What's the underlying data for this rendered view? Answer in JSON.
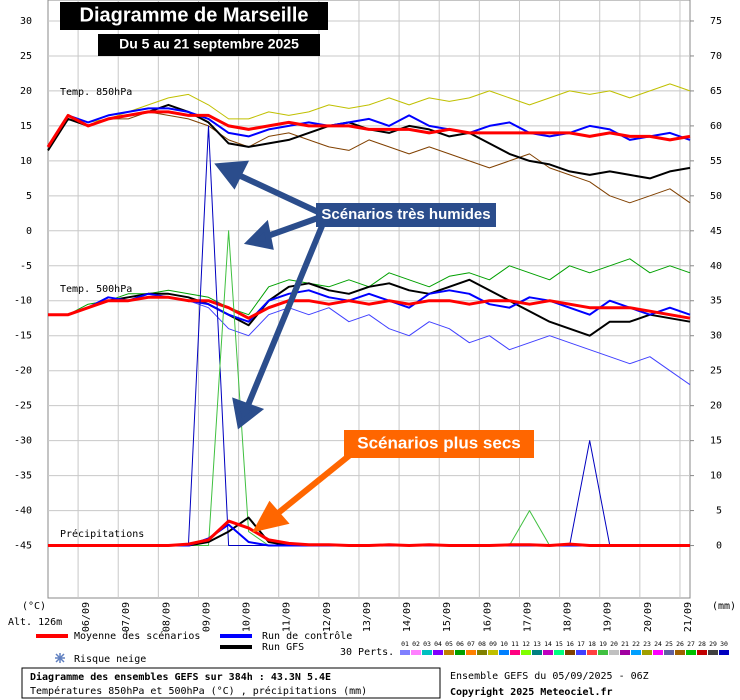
{
  "chart_data": {
    "type": "line",
    "title": "Diagramme de Marseille",
    "subtitle": "Du 5 au 21 septembre 2025",
    "y_unit": "(°C)",
    "y2_unit": "(mm)",
    "altitude": "Alt. 126m",
    "xlim": [
      0,
      384
    ],
    "xticks": [
      {
        "value": 18,
        "label": "06/09"
      },
      {
        "value": 42,
        "label": "07/09"
      },
      {
        "value": 66,
        "label": "08/09"
      },
      {
        "value": 90,
        "label": "09/09"
      },
      {
        "value": 114,
        "label": "10/09"
      },
      {
        "value": 138,
        "label": "11/09"
      },
      {
        "value": 162,
        "label": "12/09"
      },
      {
        "value": 186,
        "label": "13/09"
      },
      {
        "value": 210,
        "label": "14/09"
      },
      {
        "value": 234,
        "label": "15/09"
      },
      {
        "value": 258,
        "label": "16/09"
      },
      {
        "value": 282,
        "label": "17/09"
      },
      {
        "value": 306,
        "label": "18/09"
      },
      {
        "value": 330,
        "label": "19/09"
      },
      {
        "value": 354,
        "label": "20/09"
      },
      {
        "value": 378,
        "label": "21/09"
      }
    ],
    "ylim": [
      -52.5,
      33
    ],
    "yticks": [
      -45,
      -40,
      -35,
      -30,
      -25,
      -20,
      -15,
      -10,
      -5,
      0,
      5,
      10,
      15,
      20,
      25,
      30
    ],
    "y2lim": [
      -7.5,
      78
    ],
    "y2ticks": [
      0,
      5,
      10,
      15,
      20,
      25,
      30,
      35,
      40,
      45,
      50,
      55,
      60,
      65,
      70,
      75
    ],
    "grid": true,
    "x": [
      0,
      12,
      24,
      36,
      48,
      60,
      72,
      84,
      96,
      108,
      120,
      132,
      144,
      156,
      168,
      180,
      192,
      204,
      216,
      228,
      240,
      252,
      264,
      276,
      288,
      300,
      312,
      324,
      336,
      348,
      360,
      372,
      384
    ],
    "legend": [
      {
        "name": "Moyenne des scénarios",
        "color": "#ff0000"
      },
      {
        "name": "Run de contrôle",
        "color": "#0000ff"
      },
      {
        "name": "Run GFS",
        "color": "#000000"
      }
    ],
    "snow_label": "Risque neige",
    "perts_label": "30 Perts.",
    "perts": [
      {
        "label": "01",
        "color": "#8080ff"
      },
      {
        "label": "02",
        "color": "#ff80ff"
      },
      {
        "label": "03",
        "color": "#00c0c0"
      },
      {
        "label": "04",
        "color": "#8000ff"
      },
      {
        "label": "05",
        "color": "#c08000"
      },
      {
        "label": "06",
        "color": "#00a000"
      },
      {
        "label": "07",
        "color": "#ff8000"
      },
      {
        "label": "08",
        "color": "#808000"
      },
      {
        "label": "09",
        "color": "#c0c000"
      },
      {
        "label": "10",
        "color": "#0080ff"
      },
      {
        "label": "11",
        "color": "#ff0080"
      },
      {
        "label": "12",
        "color": "#80ff00"
      },
      {
        "label": "13",
        "color": "#008080"
      },
      {
        "label": "14",
        "color": "#c000c0"
      },
      {
        "label": "15",
        "color": "#00ff80"
      },
      {
        "label": "16",
        "color": "#804000"
      },
      {
        "label": "17",
        "color": "#4040ff"
      },
      {
        "label": "18",
        "color": "#ff4040"
      },
      {
        "label": "19",
        "color": "#40c040"
      },
      {
        "label": "20",
        "color": "#c0c0c0"
      },
      {
        "label": "21",
        "color": "#a000a0"
      },
      {
        "label": "22",
        "color": "#00a0ff"
      },
      {
        "label": "23",
        "color": "#a0a000"
      },
      {
        "label": "24",
        "color": "#ff00ff"
      },
      {
        "label": "25",
        "color": "#6060a0"
      },
      {
        "label": "26",
        "color": "#a06000"
      },
      {
        "label": "27",
        "color": "#00c000"
      },
      {
        "label": "28",
        "color": "#c00000"
      },
      {
        "label": "29",
        "color": "#404040"
      },
      {
        "label": "30",
        "color": "#0000c0"
      }
    ],
    "panels": [
      {
        "label": "Temp. 850hPa",
        "series": [
          {
            "values": [
              12,
              16.5,
              15,
              16,
              16.5,
              17,
              17,
              16.5,
              16.5,
              15,
              14.5,
              15,
              15.5,
              15,
              15,
              15,
              14.5,
              14.5,
              14.5,
              14,
              14.5,
              14,
              14,
              14,
              14,
              14,
              14,
              13.5,
              14,
              13.5,
              13.5,
              13,
              13.5
            ]
          },
          {
            "values": [
              12,
              16.5,
              15.5,
              16.5,
              17,
              17.5,
              17.5,
              17,
              16,
              14,
              13.5,
              14.5,
              15,
              15.5,
              15,
              15.5,
              16,
              15,
              16.5,
              15,
              14.5,
              14,
              15,
              15.5,
              14,
              13.5,
              14,
              15,
              14.5,
              13,
              13.5,
              14,
              13
            ]
          },
          {
            "values": [
              11.5,
              16,
              15,
              16,
              16.5,
              17,
              18,
              17,
              15.5,
              12.5,
              12,
              12.5,
              13,
              14,
              15,
              15.5,
              14.5,
              14,
              15,
              14.5,
              13.5,
              14,
              12.5,
              11,
              10,
              9.5,
              8.5,
              8,
              8.5,
              8,
              7.5,
              8.5,
              9
            ]
          },
          {
            "color": "#804000",
            "values": [
              12,
              16,
              15,
              16,
              16,
              17,
              16.5,
              16,
              15,
              13,
              12,
              13.5,
              14,
              13,
              12,
              11.5,
              13,
              12,
              11,
              12,
              11,
              10,
              9,
              10,
              11,
              9,
              8,
              7,
              5,
              4,
              5,
              6,
              4
            ]
          },
          {
            "color": "#c0c000",
            "values": [
              12,
              16.5,
              15.5,
              16,
              17,
              18,
              19,
              19.5,
              18,
              16,
              16,
              17,
              16.5,
              17,
              18,
              17.5,
              18,
              19,
              18,
              19,
              18.5,
              19,
              20,
              19,
              18,
              19,
              20,
              19.5,
              20,
              19,
              20,
              21,
              20
            ]
          }
        ]
      },
      {
        "label": "Temp. 500hPa",
        "series": [
          {
            "values": [
              -12,
              -12,
              -11,
              -10,
              -10,
              -9.5,
              -9.5,
              -10,
              -10,
              -11,
              -12.5,
              -11,
              -10,
              -10,
              -10.5,
              -10,
              -10.5,
              -10,
              -10.5,
              -10,
              -10,
              -10.5,
              -10,
              -10,
              -10.5,
              -10,
              -10.5,
              -11,
              -11,
              -11,
              -11.5,
              -12,
              -12.5
            ]
          },
          {
            "values": [
              -12,
              -12,
              -11,
              -9.5,
              -10,
              -9,
              -9.5,
              -10,
              -10.5,
              -12,
              -13,
              -10,
              -9,
              -8.5,
              -9.5,
              -10,
              -9,
              -10,
              -11,
              -9,
              -8.5,
              -9,
              -10.5,
              -11,
              -9.5,
              -10,
              -11,
              -12,
              -10,
              -11,
              -12,
              -11,
              -12
            ]
          },
          {
            "values": [
              -12,
              -12,
              -11,
              -10,
              -9.5,
              -9,
              -9,
              -9.5,
              -10.5,
              -12,
              -13.5,
              -10,
              -8,
              -7.5,
              -8.5,
              -9,
              -8,
              -7.5,
              -8.5,
              -9,
              -8,
              -7,
              -8.5,
              -10,
              -11.5,
              -13,
              -14,
              -15,
              -13,
              -13,
              -12,
              -12.5,
              -13
            ]
          },
          {
            "color": "#4040ff",
            "values": [
              -12,
              -12,
              -11,
              -10,
              -10,
              -9,
              -9.5,
              -10,
              -11,
              -14,
              -15,
              -12,
              -11,
              -12,
              -11,
              -13,
              -12,
              -14,
              -15,
              -13,
              -14,
              -16,
              -15,
              -17,
              -16,
              -15,
              -16,
              -17,
              -18,
              -19,
              -18,
              -20,
              -22
            ]
          },
          {
            "color": "#00a000",
            "values": [
              -12,
              -12,
              -10.5,
              -10,
              -9,
              -9,
              -8.5,
              -9,
              -9.5,
              -11,
              -12,
              -8,
              -7,
              -7.5,
              -8,
              -7,
              -8,
              -6,
              -7,
              -8,
              -6.5,
              -6,
              -7,
              -5,
              -6,
              -7,
              -5,
              -6,
              -5,
              -4,
              -6,
              -5,
              -6
            ]
          }
        ]
      },
      {
        "label": "Précipitations",
        "axis": "y2",
        "series": [
          {
            "values": [
              0,
              0,
              0,
              0,
              0,
              0,
              0,
              0.2,
              0.8,
              3.5,
              2.5,
              0.8,
              0.3,
              0.1,
              0.1,
              0,
              0,
              0.1,
              0,
              0.1,
              0,
              0,
              0,
              0.1,
              0.1,
              0,
              0.2,
              0,
              0,
              0,
              0,
              0,
              0
            ]
          },
          {
            "values": [
              0,
              0,
              0,
              0,
              0,
              0,
              0,
              0,
              1,
              3,
              0.5,
              0,
              0,
              0,
              0,
              0,
              0,
              0,
              0,
              0,
              0,
              0,
              0,
              0,
              0,
              0,
              0,
              0,
              0,
              0,
              0,
              0,
              0
            ]
          },
          {
            "values": [
              0,
              0,
              0,
              0,
              0,
              0,
              0,
              0,
              0.5,
              2,
              4,
              0.5,
              0,
              0,
              0,
              0,
              0,
              0,
              0,
              0,
              0,
              0,
              0,
              0,
              0,
              0,
              0,
              0,
              0,
              0,
              0,
              0,
              0
            ]
          },
          {
            "color": "#0000c0",
            "values": [
              0,
              0,
              0,
              0,
              0,
              0,
              0,
              0,
              60,
              0,
              0,
              0,
              0,
              0,
              0,
              0,
              0,
              0,
              0,
              0,
              0,
              0,
              0,
              0,
              0,
              0,
              0,
              15,
              0,
              0,
              0,
              0,
              0
            ]
          },
          {
            "color": "#40c040",
            "values": [
              0,
              0,
              0,
              0,
              0,
              0,
              0,
              0,
              0,
              45,
              2,
              0,
              0,
              0,
              0,
              0,
              0,
              0,
              0,
              0,
              0,
              0,
              0,
              0,
              5,
              0,
              0,
              0,
              0,
              0,
              0,
              0,
              0
            ]
          }
        ]
      }
    ],
    "annotations": [
      "Scénarios très humides",
      "Scénarios plus secs"
    ],
    "footer": {
      "line1": "Diagramme des ensembles GEFS sur 384h : 43.3N 5.4E",
      "line2": "Températures 850hPa et 500hPa (°C) , précipitations (mm)",
      "run": "Ensemble GEFS du 05/09/2025 - 06Z",
      "copyright": "Copyright 2025 Meteociel.fr"
    }
  }
}
